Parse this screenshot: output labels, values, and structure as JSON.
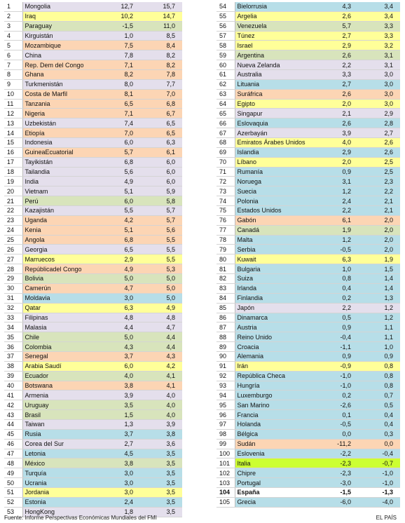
{
  "colors": {
    "white": "#ffffff",
    "orange": "#fcd5b4",
    "yellow": "#ffff99",
    "green": "#d8e4bc",
    "blue": "#b7dee8",
    "purple": "#e4dfec",
    "highlight": "#ccff33"
  },
  "left_rows": [
    {
      "rank": "1",
      "country": "Mongolia",
      "v1": "12,7",
      "v2": "15,7",
      "color": "purple"
    },
    {
      "rank": "2",
      "country": "Iraq",
      "v1": "10,2",
      "v2": "14,7",
      "color": "yellow"
    },
    {
      "rank": "3",
      "country": "Paraguay",
      "v1": "-1,5",
      "v2": "11,0",
      "color": "green"
    },
    {
      "rank": "4",
      "country": "Kirguistán",
      "v1": "1,0",
      "v2": "8,5",
      "color": "purple"
    },
    {
      "rank": "5",
      "country": "Mozambique",
      "v1": "7,5",
      "v2": "8,4",
      "color": "orange"
    },
    {
      "rank": "6",
      "country": "China",
      "v1": "7,8",
      "v2": "8,2",
      "color": "purple"
    },
    {
      "rank": "7",
      "country": "Rep. Dem del Congo",
      "v1": "7,1",
      "v2": "8,2",
      "color": "orange"
    },
    {
      "rank": "8",
      "country": "Ghana",
      "v1": "8,2",
      "v2": "7,8",
      "color": "orange"
    },
    {
      "rank": "9",
      "country": "Turkmenistán",
      "v1": "8,0",
      "v2": "7,7",
      "color": "purple"
    },
    {
      "rank": "10",
      "country": "Costa de Marfil",
      "v1": "8,1",
      "v2": "7,0",
      "color": "orange"
    },
    {
      "rank": "11",
      "country": "Tanzania",
      "v1": "6,5",
      "v2": "6,8",
      "color": "orange"
    },
    {
      "rank": "12",
      "country": "Nigeria",
      "v1": "7,1",
      "v2": "6,7",
      "color": "orange"
    },
    {
      "rank": "13",
      "country": "Uzbekistán",
      "v1": "7,4",
      "v2": "6,5",
      "color": "purple"
    },
    {
      "rank": "14",
      "country": "Etiopía",
      "v1": "7,0",
      "v2": "6,5",
      "color": "orange"
    },
    {
      "rank": "15",
      "country": "Indonesia",
      "v1": "6,0",
      "v2": "6,3",
      "color": "purple"
    },
    {
      "rank": "16",
      "country": "GuineaEcuatorial",
      "v1": "5,7",
      "v2": "6,1",
      "color": "orange"
    },
    {
      "rank": "17",
      "country": "Tayikistán",
      "v1": "6,8",
      "v2": "6,0",
      "color": "purple"
    },
    {
      "rank": "18",
      "country": "Tailandia",
      "v1": "5,6",
      "v2": "6,0",
      "color": "purple"
    },
    {
      "rank": "19",
      "country": "India",
      "v1": "4,9",
      "v2": "6,0",
      "color": "purple"
    },
    {
      "rank": "20",
      "country": "Vietnam",
      "v1": "5,1",
      "v2": "5,9",
      "color": "purple"
    },
    {
      "rank": "21",
      "country": "Perú",
      "v1": "6,0",
      "v2": "5,8",
      "color": "green"
    },
    {
      "rank": "22",
      "country": "Kazajistán",
      "v1": "5,5",
      "v2": "5,7",
      "color": "purple"
    },
    {
      "rank": "23",
      "country": "Uganda",
      "v1": "4,2",
      "v2": "5,7",
      "color": "orange"
    },
    {
      "rank": "24",
      "country": "Kenia",
      "v1": "5,1",
      "v2": "5,6",
      "color": "orange"
    },
    {
      "rank": "25",
      "country": "Angola",
      "v1": "6,8",
      "v2": "5,5",
      "color": "orange"
    },
    {
      "rank": "26",
      "country": "Georgia",
      "v1": "6,5",
      "v2": "5,5",
      "color": "purple"
    },
    {
      "rank": "27",
      "country": "Marruecos",
      "v1": "2,9",
      "v2": "5,5",
      "color": "yellow"
    },
    {
      "rank": "28",
      "country": "Repúblicadel Congo",
      "v1": "4,9",
      "v2": "5,3",
      "color": "orange"
    },
    {
      "rank": "29",
      "country": "Bolivia",
      "v1": "5,0",
      "v2": "5,0",
      "color": "green"
    },
    {
      "rank": "30",
      "country": "Camerún",
      "v1": "4,7",
      "v2": "5,0",
      "color": "orange"
    },
    {
      "rank": "31",
      "country": "Moldavia",
      "v1": "3,0",
      "v2": "5,0",
      "color": "blue"
    },
    {
      "rank": "32",
      "country": "Qatar",
      "v1": "6,3",
      "v2": "4,9",
      "color": "yellow"
    },
    {
      "rank": "33",
      "country": "Filipinas",
      "v1": "4,8",
      "v2": "4,8",
      "color": "purple"
    },
    {
      "rank": "34",
      "country": "Malasia",
      "v1": "4,4",
      "v2": "4,7",
      "color": "purple"
    },
    {
      "rank": "35",
      "country": "Chile",
      "v1": "5,0",
      "v2": "4,4",
      "color": "green"
    },
    {
      "rank": "36",
      "country": "Colombia",
      "v1": "4,3",
      "v2": "4,4",
      "color": "green"
    },
    {
      "rank": "37",
      "country": "Senegal",
      "v1": "3,7",
      "v2": "4,3",
      "color": "orange"
    },
    {
      "rank": "38",
      "country": "Arabia Saudí",
      "v1": "6,0",
      "v2": "4,2",
      "color": "yellow"
    },
    {
      "rank": "39",
      "country": "Ecuador",
      "v1": "4,0",
      "v2": "4,1",
      "color": "green"
    },
    {
      "rank": "40",
      "country": "Botswana",
      "v1": "3,8",
      "v2": "4,1",
      "color": "orange"
    },
    {
      "rank": "41",
      "country": "Armenia",
      "v1": "3,9",
      "v2": "4,0",
      "color": "purple"
    },
    {
      "rank": "42",
      "country": "Uruguay",
      "v1": "3,5",
      "v2": "4,0",
      "color": "green"
    },
    {
      "rank": "43",
      "country": "Brasil",
      "v1": "1,5",
      "v2": "4,0",
      "color": "green"
    },
    {
      "rank": "44",
      "country": "Taiwan",
      "v1": "1,3",
      "v2": "3,9",
      "color": "purple"
    },
    {
      "rank": "45",
      "country": "Rusia",
      "v1": "3,7",
      "v2": "3,8",
      "color": "blue"
    },
    {
      "rank": "46",
      "country": "Corea del Sur",
      "v1": "2,7",
      "v2": "3,6",
      "color": "purple"
    },
    {
      "rank": "47",
      "country": "Letonia",
      "v1": "4,5",
      "v2": "3,5",
      "color": "blue"
    },
    {
      "rank": "48",
      "country": "México",
      "v1": "3,8",
      "v2": "3,5",
      "color": "green"
    },
    {
      "rank": "49",
      "country": "Turquía",
      "v1": "3,0",
      "v2": "3,5",
      "color": "blue"
    },
    {
      "rank": "50",
      "country": "Ucrania",
      "v1": "3,0",
      "v2": "3,5",
      "color": "blue"
    },
    {
      "rank": "51",
      "country": "Jordania",
      "v1": "3,0",
      "v2": "3,5",
      "color": "yellow"
    },
    {
      "rank": "52",
      "country": "Estonia",
      "v1": "2,4",
      "v2": "3,5",
      "color": "blue"
    },
    {
      "rank": "53",
      "country": "HongKong",
      "v1": "1,8",
      "v2": "3,5",
      "color": "purple"
    }
  ],
  "right_rows": [
    {
      "rank": "54",
      "country": "Bielorrusia",
      "v1": "4,3",
      "v2": "3,4",
      "color": "blue"
    },
    {
      "rank": "55",
      "country": "Argelia",
      "v1": "2,6",
      "v2": "3,4",
      "color": "yellow"
    },
    {
      "rank": "56",
      "country": "Venezuela",
      "v1": "5,7",
      "v2": "3,3",
      "color": "green"
    },
    {
      "rank": "57",
      "country": "Túnez",
      "v1": "2,7",
      "v2": "3,3",
      "color": "yellow"
    },
    {
      "rank": "58",
      "country": "Israel",
      "v1": "2,9",
      "v2": "3,2",
      "color": "yellow"
    },
    {
      "rank": "59",
      "country": "Argentina",
      "v1": "2,6",
      "v2": "3,1",
      "color": "green"
    },
    {
      "rank": "60",
      "country": "Nueva Zelanda",
      "v1": "2,2",
      "v2": "3,1",
      "color": "purple"
    },
    {
      "rank": "61",
      "country": "Australia",
      "v1": "3,3",
      "v2": "3,0",
      "color": "purple"
    },
    {
      "rank": "62",
      "country": "Lituania",
      "v1": "2,7",
      "v2": "3,0",
      "color": "blue"
    },
    {
      "rank": "63",
      "country": "Suráfrica",
      "v1": "2,6",
      "v2": "3,0",
      "color": "orange"
    },
    {
      "rank": "64",
      "country": "Egipto",
      "v1": "2,0",
      "v2": "3,0",
      "color": "yellow"
    },
    {
      "rank": "65",
      "country": "Singapur",
      "v1": "2,1",
      "v2": "2,9",
      "color": "purple"
    },
    {
      "rank": "66",
      "country": "Eslovaquia",
      "v1": "2,6",
      "v2": "2,8",
      "color": "blue"
    },
    {
      "rank": "67",
      "country": "Azerbayán",
      "v1": "3,9",
      "v2": "2,7",
      "color": "purple"
    },
    {
      "rank": "68",
      "country": "Emiratos Árabes Unidos",
      "v1": "4,0",
      "v2": "2,6",
      "color": "yellow"
    },
    {
      "rank": "69",
      "country": "Islandia",
      "v1": "2,9",
      "v2": "2,6",
      "color": "blue"
    },
    {
      "rank": "70",
      "country": "Líbano",
      "v1": "2,0",
      "v2": "2,5",
      "color": "yellow"
    },
    {
      "rank": "71",
      "country": "Rumanía",
      "v1": "0,9",
      "v2": "2,5",
      "color": "blue"
    },
    {
      "rank": "72",
      "country": "Noruega",
      "v1": "3,1",
      "v2": "2,3",
      "color": "blue"
    },
    {
      "rank": "73",
      "country": "Suecia",
      "v1": "1,2",
      "v2": "2,2",
      "color": "blue"
    },
    {
      "rank": "74",
      "country": "Polonia",
      "v1": "2,4",
      "v2": "2,1",
      "color": "blue"
    },
    {
      "rank": "75",
      "country": "Estados Unidos",
      "v1": "2,2",
      "v2": "2,1",
      "color": "blue"
    },
    {
      "rank": "76",
      "country": "Gabón",
      "v1": "6,1",
      "v2": "2,0",
      "color": "orange"
    },
    {
      "rank": "77",
      "country": "Canadá",
      "v1": "1,9",
      "v2": "2,0",
      "color": "green"
    },
    {
      "rank": "78",
      "country": "Malta",
      "v1": "1,2",
      "v2": "2,0",
      "color": "blue"
    },
    {
      "rank": "79",
      "country": "Serbia",
      "v1": "-0,5",
      "v2": "2,0",
      "color": "blue"
    },
    {
      "rank": "80",
      "country": "Kuwait",
      "v1": "6,3",
      "v2": "1,9",
      "color": "yellow"
    },
    {
      "rank": "81",
      "country": "Bulgaria",
      "v1": "1,0",
      "v2": "1,5",
      "color": "blue"
    },
    {
      "rank": "82",
      "country": "Suiza",
      "v1": "0,8",
      "v2": "1,4",
      "color": "blue"
    },
    {
      "rank": "83",
      "country": "Irlanda",
      "v1": "0,4",
      "v2": "1,4",
      "color": "blue"
    },
    {
      "rank": "84",
      "country": "Finlandia",
      "v1": "0,2",
      "v2": "1,3",
      "color": "blue"
    },
    {
      "rank": "85",
      "country": "Japón",
      "v1": "2,2",
      "v2": "1,2",
      "color": "purple"
    },
    {
      "rank": "86",
      "country": "Dinamarca",
      "v1": "0,5",
      "v2": "1,2",
      "color": "blue"
    },
    {
      "rank": "87",
      "country": "Austria",
      "v1": "0,9",
      "v2": "1,1",
      "color": "blue"
    },
    {
      "rank": "88",
      "country": "Reino Unido",
      "v1": "-0,4",
      "v2": "1,1",
      "color": "blue"
    },
    {
      "rank": "89",
      "country": "Croacia",
      "v1": "-1,1",
      "v2": "1,0",
      "color": "blue"
    },
    {
      "rank": "90",
      "country": "Alemania",
      "v1": "0,9",
      "v2": "0,9",
      "color": "blue"
    },
    {
      "rank": "91",
      "country": "Irán",
      "v1": "-0,9",
      "v2": "0,8",
      "color": "yellow"
    },
    {
      "rank": "92",
      "country": "República Checa",
      "v1": "-1,0",
      "v2": "0,8",
      "color": "blue"
    },
    {
      "rank": "93",
      "country": "Hungría",
      "v1": "-1,0",
      "v2": "0,8",
      "color": "blue"
    },
    {
      "rank": "94",
      "country": "Luxemburgo",
      "v1": "0,2",
      "v2": "0,7",
      "color": "blue"
    },
    {
      "rank": "95",
      "country": "San Marino",
      "v1": "-2,6",
      "v2": "0,5",
      "color": "blue"
    },
    {
      "rank": "96",
      "country": "Francia",
      "v1": "0,1",
      "v2": "0,4",
      "color": "blue"
    },
    {
      "rank": "97",
      "country": "Holanda",
      "v1": "-0,5",
      "v2": "0,4",
      "color": "blue"
    },
    {
      "rank": "98",
      "country": "Bélgica",
      "v1": "0,0",
      "v2": "0,3",
      "color": "blue"
    },
    {
      "rank": "99",
      "country": "Sudán",
      "v1": "-11,2",
      "v2": "0,0",
      "color": "orange"
    },
    {
      "rank": "100",
      "country": "Eslovenia",
      "v1": "-2,2",
      "v2": "-0,4",
      "color": "blue"
    },
    {
      "rank": "101",
      "country": "Italia",
      "v1": "-2,3",
      "v2": "-0,7",
      "color": "highlight"
    },
    {
      "rank": "102",
      "country": "Chipre",
      "v1": "-2,3",
      "v2": "-1,0",
      "color": "blue"
    },
    {
      "rank": "103",
      "country": "Portugal",
      "v1": "-3,0",
      "v2": "-1,0",
      "color": "blue"
    },
    {
      "rank": "104",
      "country": "España",
      "v1": "-1,5",
      "v2": "-1,3",
      "color": "white",
      "bold": true
    },
    {
      "rank": "105",
      "country": "Grecia",
      "v1": "-6,0",
      "v2": "-4,0",
      "color": "blue"
    }
  ],
  "footer": {
    "source": "Fuente: Informe Perspectivas Económicas Mundiales del FMI",
    "brand": "EL PAÍS"
  }
}
